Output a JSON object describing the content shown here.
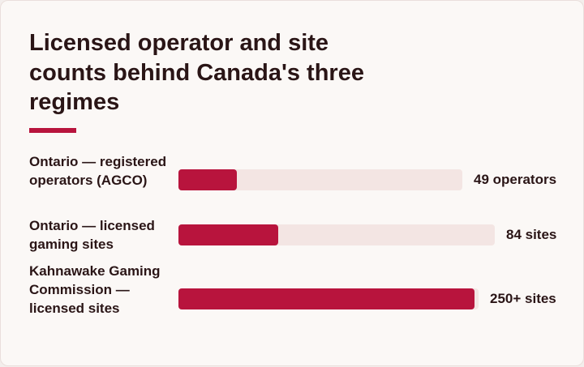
{
  "title": "Licensed operator and site counts behind Canada's three regimes",
  "colors": {
    "background": "#fbf8f6",
    "bar": "#b8143d",
    "track": "#f3e5e3",
    "text": "#2a1516"
  },
  "chart_data": {
    "type": "bar",
    "orientation": "horizontal",
    "title": "Licensed operator and site counts behind Canada's three regimes",
    "categories": [
      "Ontario — registered operators (AGCO)",
      "Ontario — licensed gaming sites",
      "Kahnawake Gaming Commission — licensed sites"
    ],
    "values": [
      49,
      84,
      250
    ],
    "value_labels": [
      "49 operators",
      "84 sites",
      "250+ sites"
    ],
    "xlim": [
      0,
      250
    ],
    "grid": false,
    "legend": "none"
  }
}
